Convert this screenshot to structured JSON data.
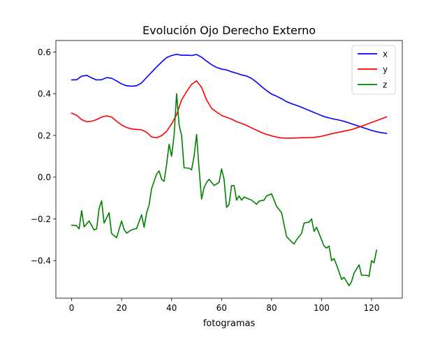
{
  "chart_data": {
    "type": "line",
    "title": "Evolución Ojo Derecho Externo",
    "xlabel": "fotogramas",
    "ylabel": "",
    "xlim": [
      -6.3,
      132.3
    ],
    "ylim": [
      -0.58,
      0.655
    ],
    "xticks": [
      0,
      20,
      40,
      60,
      80,
      100,
      120
    ],
    "yticks": [
      -0.4,
      -0.2,
      0.0,
      0.2,
      0.4,
      0.6
    ],
    "xtick_labels": [
      "0",
      "20",
      "40",
      "60",
      "80",
      "100",
      "120"
    ],
    "ytick_labels": [
      "−0.4",
      "−0.2",
      "0.0",
      "0.2",
      "0.4",
      "0.6"
    ],
    "grid": false,
    "legend_position": "top-right",
    "series": [
      {
        "name": "x",
        "color": "#0000ff",
        "points": [
          [
            0,
            0.466
          ],
          [
            2,
            0.467
          ],
          [
            4,
            0.484
          ],
          [
            6,
            0.488
          ],
          [
            8,
            0.476
          ],
          [
            10,
            0.466
          ],
          [
            12,
            0.467
          ],
          [
            14,
            0.477
          ],
          [
            16,
            0.474
          ],
          [
            18,
            0.461
          ],
          [
            20,
            0.447
          ],
          [
            22,
            0.438
          ],
          [
            24,
            0.436
          ],
          [
            26,
            0.438
          ],
          [
            28,
            0.452
          ],
          [
            30,
            0.478
          ],
          [
            32,
            0.503
          ],
          [
            34,
            0.528
          ],
          [
            36,
            0.552
          ],
          [
            38,
            0.573
          ],
          [
            40,
            0.583
          ],
          [
            42,
            0.589
          ],
          [
            44,
            0.584
          ],
          [
            46,
            0.585
          ],
          [
            48,
            0.583
          ],
          [
            50,
            0.588
          ],
          [
            52,
            0.575
          ],
          [
            54,
            0.556
          ],
          [
            56,
            0.539
          ],
          [
            58,
            0.526
          ],
          [
            60,
            0.518
          ],
          [
            62,
            0.514
          ],
          [
            64,
            0.505
          ],
          [
            66,
            0.498
          ],
          [
            68,
            0.49
          ],
          [
            70,
            0.485
          ],
          [
            72,
            0.473
          ],
          [
            74,
            0.455
          ],
          [
            76,
            0.434
          ],
          [
            78,
            0.415
          ],
          [
            80,
            0.398
          ],
          [
            82,
            0.388
          ],
          [
            84,
            0.376
          ],
          [
            86,
            0.362
          ],
          [
            88,
            0.352
          ],
          [
            90,
            0.344
          ],
          [
            92,
            0.335
          ],
          [
            94,
            0.325
          ],
          [
            96,
            0.315
          ],
          [
            98,
            0.305
          ],
          [
            100,
            0.295
          ],
          [
            102,
            0.287
          ],
          [
            104,
            0.281
          ],
          [
            106,
            0.276
          ],
          [
            108,
            0.271
          ],
          [
            110,
            0.264
          ],
          [
            112,
            0.256
          ],
          [
            114,
            0.248
          ],
          [
            116,
            0.24
          ],
          [
            118,
            0.232
          ],
          [
            120,
            0.224
          ],
          [
            122,
            0.218
          ],
          [
            124,
            0.213
          ],
          [
            126,
            0.21
          ]
        ]
      },
      {
        "name": "y",
        "color": "#ff0000",
        "points": [
          [
            0,
            0.307
          ],
          [
            2,
            0.297
          ],
          [
            4,
            0.276
          ],
          [
            6,
            0.266
          ],
          [
            8,
            0.268
          ],
          [
            10,
            0.276
          ],
          [
            12,
            0.288
          ],
          [
            14,
            0.294
          ],
          [
            16,
            0.288
          ],
          [
            18,
            0.268
          ],
          [
            20,
            0.25
          ],
          [
            22,
            0.238
          ],
          [
            24,
            0.231
          ],
          [
            26,
            0.229
          ],
          [
            28,
            0.227
          ],
          [
            30,
            0.215
          ],
          [
            32,
            0.193
          ],
          [
            34,
            0.189
          ],
          [
            36,
            0.199
          ],
          [
            38,
            0.22
          ],
          [
            40,
            0.255
          ],
          [
            42,
            0.3
          ],
          [
            44,
            0.37
          ],
          [
            46,
            0.41
          ],
          [
            48,
            0.445
          ],
          [
            50,
            0.462
          ],
          [
            52,
            0.43
          ],
          [
            54,
            0.37
          ],
          [
            56,
            0.33
          ],
          [
            58,
            0.312
          ],
          [
            60,
            0.296
          ],
          [
            62,
            0.287
          ],
          [
            64,
            0.278
          ],
          [
            66,
            0.266
          ],
          [
            68,
            0.258
          ],
          [
            70,
            0.248
          ],
          [
            72,
            0.236
          ],
          [
            74,
            0.225
          ],
          [
            76,
            0.214
          ],
          [
            78,
            0.205
          ],
          [
            80,
            0.198
          ],
          [
            82,
            0.192
          ],
          [
            84,
            0.188
          ],
          [
            86,
            0.187
          ],
          [
            88,
            0.187
          ],
          [
            90,
            0.188
          ],
          [
            92,
            0.189
          ],
          [
            94,
            0.189
          ],
          [
            96,
            0.19
          ],
          [
            98,
            0.192
          ],
          [
            100,
            0.196
          ],
          [
            102,
            0.202
          ],
          [
            104,
            0.208
          ],
          [
            106,
            0.213
          ],
          [
            108,
            0.218
          ],
          [
            110,
            0.223
          ],
          [
            112,
            0.228
          ],
          [
            114,
            0.236
          ],
          [
            116,
            0.244
          ],
          [
            118,
            0.253
          ],
          [
            120,
            0.262
          ],
          [
            122,
            0.271
          ],
          [
            124,
            0.28
          ],
          [
            126,
            0.289
          ]
        ]
      },
      {
        "name": "z",
        "color": "#008000",
        "points": [
          [
            0,
            -0.23
          ],
          [
            2,
            -0.232
          ],
          [
            3,
            -0.248
          ],
          [
            4,
            -0.16
          ],
          [
            5,
            -0.238
          ],
          [
            7,
            -0.21
          ],
          [
            9,
            -0.253
          ],
          [
            10,
            -0.248
          ],
          [
            11,
            -0.15
          ],
          [
            12,
            -0.113
          ],
          [
            13,
            -0.22
          ],
          [
            15,
            -0.17
          ],
          [
            16,
            -0.27
          ],
          [
            18,
            -0.29
          ],
          [
            20,
            -0.21
          ],
          [
            21,
            -0.25
          ],
          [
            22,
            -0.268
          ],
          [
            24,
            -0.252
          ],
          [
            26,
            -0.246
          ],
          [
            28,
            -0.18
          ],
          [
            29,
            -0.24
          ],
          [
            30,
            -0.172
          ],
          [
            31,
            -0.133
          ],
          [
            32,
            -0.055
          ],
          [
            34,
            0.015
          ],
          [
            35,
            0.03
          ],
          [
            36,
            -0.01
          ],
          [
            37,
            -0.02
          ],
          [
            38,
            0.06
          ],
          [
            39,
            0.158
          ],
          [
            40,
            0.1
          ],
          [
            41,
            0.2
          ],
          [
            42,
            0.4
          ],
          [
            43,
            0.25
          ],
          [
            44,
            0.2
          ],
          [
            45,
            0.045
          ],
          [
            47,
            0.043
          ],
          [
            48,
            0.035
          ],
          [
            49,
            0.1
          ],
          [
            50,
            0.205
          ],
          [
            51,
            0.04
          ],
          [
            52,
            -0.105
          ],
          [
            53,
            -0.05
          ],
          [
            54,
            -0.025
          ],
          [
            55,
            -0.01
          ],
          [
            57,
            -0.04
          ],
          [
            59,
            -0.025
          ],
          [
            60,
            0.04
          ],
          [
            61,
            -0.01
          ],
          [
            62,
            -0.145
          ],
          [
            63,
            -0.13
          ],
          [
            64,
            -0.04
          ],
          [
            65,
            -0.04
          ],
          [
            66,
            -0.11
          ],
          [
            67,
            -0.09
          ],
          [
            68,
            -0.11
          ],
          [
            69,
            -0.095
          ],
          [
            70,
            -0.1
          ],
          [
            72,
            -0.11
          ],
          [
            73,
            -0.12
          ],
          [
            74,
            -0.13
          ],
          [
            75,
            -0.115
          ],
          [
            77,
            -0.11
          ],
          [
            78,
            -0.09
          ],
          [
            80,
            -0.08
          ],
          [
            81,
            -0.11
          ],
          [
            82,
            -0.14
          ],
          [
            84,
            -0.17
          ],
          [
            86,
            -0.285
          ],
          [
            88,
            -0.31
          ],
          [
            89,
            -0.32
          ],
          [
            90,
            -0.3
          ],
          [
            92,
            -0.27
          ],
          [
            93,
            -0.22
          ],
          [
            95,
            -0.215
          ],
          [
            96,
            -0.2
          ],
          [
            97,
            -0.26
          ],
          [
            98,
            -0.24
          ],
          [
            100,
            -0.3
          ],
          [
            101,
            -0.33
          ],
          [
            102,
            -0.34
          ],
          [
            103,
            -0.33
          ],
          [
            104,
            -0.4
          ],
          [
            105,
            -0.39
          ],
          [
            106,
            -0.42
          ],
          [
            108,
            -0.49
          ],
          [
            109,
            -0.48
          ],
          [
            110,
            -0.5
          ],
          [
            111,
            -0.52
          ],
          [
            112,
            -0.5
          ],
          [
            113,
            -0.46
          ],
          [
            114,
            -0.44
          ],
          [
            115,
            -0.42
          ],
          [
            116,
            -0.47
          ],
          [
            118,
            -0.47
          ],
          [
            119,
            -0.475
          ],
          [
            120,
            -0.4
          ],
          [
            121,
            -0.41
          ],
          [
            122,
            -0.35
          ]
        ]
      }
    ]
  }
}
